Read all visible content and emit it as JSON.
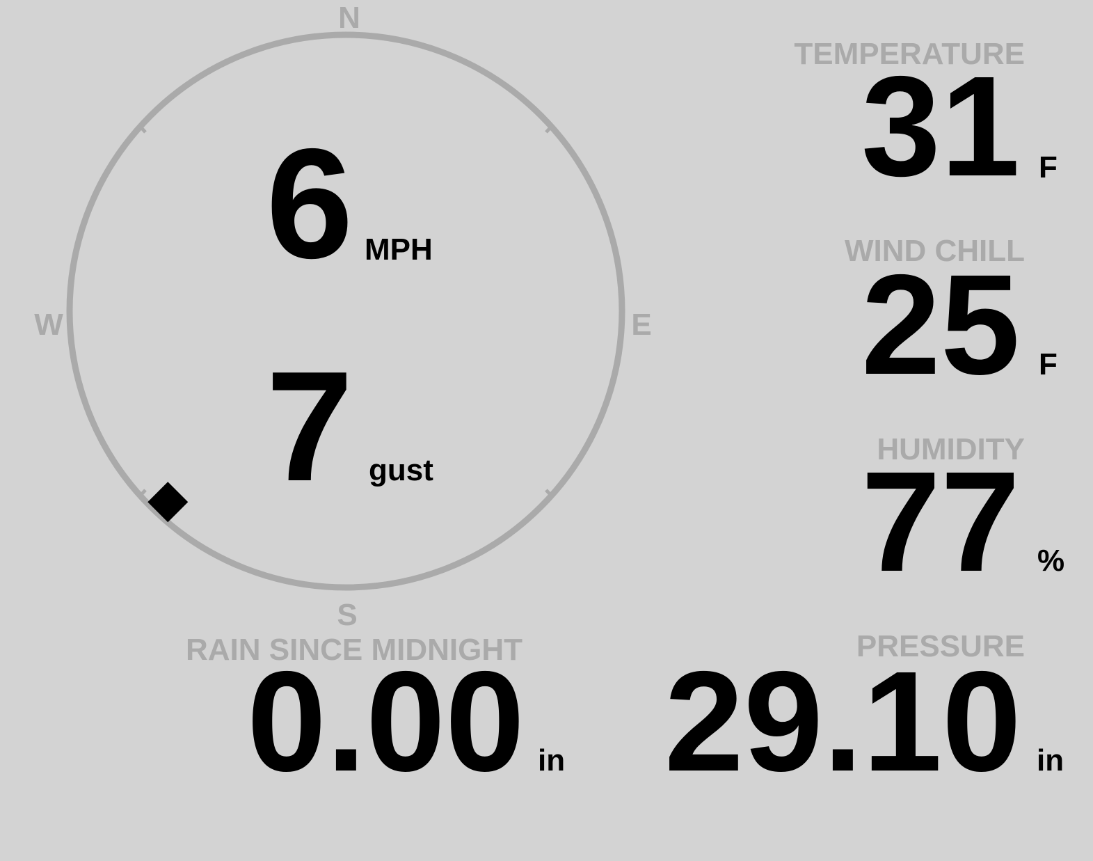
{
  "compass": {
    "north": "N",
    "east": "E",
    "south": "S",
    "west": "W",
    "wind_direction": 223
  },
  "wind": {
    "speed": "6",
    "speed_unit": "MPH",
    "gust": "7",
    "gust_unit": "gust"
  },
  "temperature": {
    "label": "TEMPERATURE",
    "value": "31",
    "unit": "F"
  },
  "wind_chill": {
    "label": "WIND CHILL",
    "value": "25",
    "unit": "F"
  },
  "humidity": {
    "label": "HUMIDITY",
    "value": "77",
    "unit": "%"
  },
  "pressure": {
    "label": "PRESSURE",
    "value": "29.10",
    "unit": "in"
  },
  "rain": {
    "label": "RAIN SINCE MIDNIGHT",
    "value": "0.00",
    "unit": "in"
  }
}
